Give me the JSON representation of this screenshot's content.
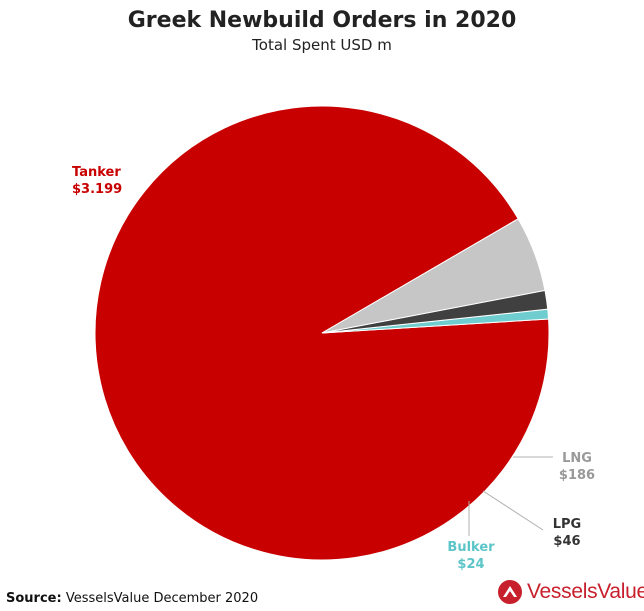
{
  "chart_data": {
    "type": "pie",
    "title": "Greek Newbuild Orders in 2020",
    "subtitle": "Total Spent USD m",
    "slices": [
      {
        "label": "Tanker",
        "value_text": "$3.199",
        "value": 3199,
        "color": "#c80000"
      },
      {
        "label": "LNG",
        "value_text": "$186",
        "value": 186,
        "color": "#c6c6c6"
      },
      {
        "label": "LPG",
        "value_text": "$46",
        "value": 46,
        "color": "#404040"
      },
      {
        "label": "Bulker",
        "value_text": "$24",
        "value": 24,
        "color": "#6fcdd0"
      }
    ],
    "label_colors": {
      "Tanker": "#c80000",
      "LNG": "#999999",
      "LPG": "#333333",
      "Bulker": "#5bc5c8"
    }
  },
  "footer": {
    "source_label": "Source:",
    "source_text": " VesselsValue December 2020"
  },
  "logo": {
    "text": "VesselsValue",
    "icon": "vesselsvalue-logo-icon",
    "color": "#c7202c"
  }
}
